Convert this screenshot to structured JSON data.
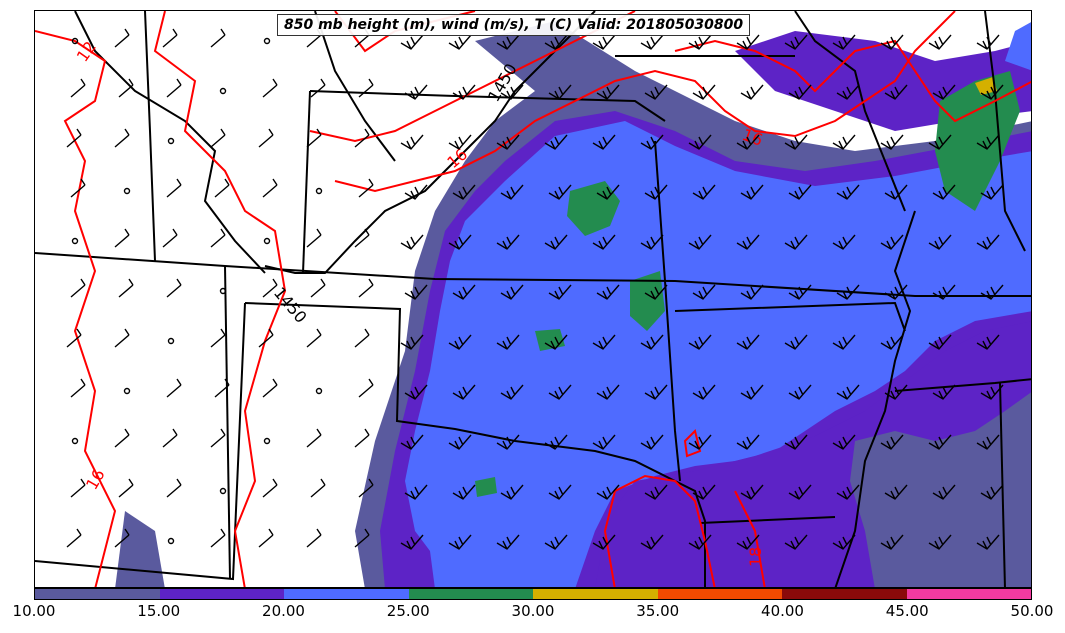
{
  "map": {
    "title": "850 mb height (m), wind (m/s), T (C) Valid: 201805030800",
    "height_contour_labels": [
      "1450",
      "1450"
    ],
    "temperature_contour_labels": [
      "12",
      "16",
      "16",
      "16",
      "18"
    ],
    "colors": {
      "background": "#ffffff",
      "state_borders": "#000000",
      "height_contours": "#000000",
      "temperature_contours": "#ff0000",
      "wind_barbs": "#000000"
    }
  },
  "colorbar": {
    "variable": "wind (m/s)",
    "ticks": [
      "10.00",
      "15.00",
      "20.00",
      "25.00",
      "30.00",
      "35.00",
      "40.00",
      "45.00",
      "50.00"
    ],
    "bins": [
      {
        "from": 10,
        "to": 15,
        "color": "#5a5a9e"
      },
      {
        "from": 15,
        "to": 20,
        "color": "#5d23c6"
      },
      {
        "from": 20,
        "to": 25,
        "color": "#4f6bff"
      },
      {
        "from": 25,
        "to": 30,
        "color": "#238c4f"
      },
      {
        "from": 30,
        "to": 35,
        "color": "#d4b000"
      },
      {
        "from": 35,
        "to": 40,
        "color": "#f24a00"
      },
      {
        "from": 40,
        "to": 45,
        "color": "#8a0a0a"
      },
      {
        "from": 45,
        "to": 50,
        "color": "#f23aa0"
      }
    ]
  }
}
